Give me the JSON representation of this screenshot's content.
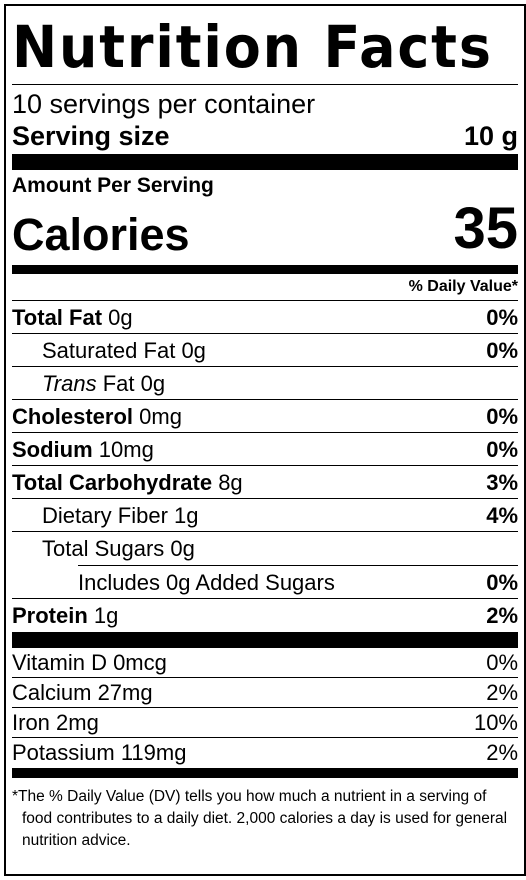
{
  "title": "Nutrition Facts",
  "servings_per_container": "10 servings per container",
  "serving_size": {
    "label": "Serving size",
    "value": "10 g"
  },
  "amount_per_serving": "Amount Per Serving",
  "calories": {
    "label": "Calories",
    "value": "35"
  },
  "daily_value_header": "% Daily Value*",
  "nutrients": {
    "total_fat": {
      "label": "Total Fat",
      "amount": "0g",
      "dv": "0%"
    },
    "saturated_fat": {
      "label": "Saturated Fat",
      "amount": "0g",
      "dv": "0%"
    },
    "trans_fat": {
      "label": "Trans",
      "suffix": "Fat",
      "amount": "0g"
    },
    "cholesterol": {
      "label": "Cholesterol",
      "amount": "0mg",
      "dv": "0%"
    },
    "sodium": {
      "label": "Sodium",
      "amount": "10mg",
      "dv": "0%"
    },
    "total_carbohydrate": {
      "label": "Total Carbohydrate",
      "amount": "8g",
      "dv": "3%"
    },
    "dietary_fiber": {
      "label": "Dietary Fiber",
      "amount": "1g",
      "dv": "4%"
    },
    "total_sugars": {
      "label": "Total Sugars",
      "amount": "0g"
    },
    "added_sugars": {
      "label": "Includes 0g Added Sugars",
      "dv": "0%"
    },
    "protein": {
      "label": "Protein",
      "amount": "1g",
      "dv": "2%"
    }
  },
  "vitamins": [
    {
      "label": "Vitamin D 0mcg",
      "dv": "0%"
    },
    {
      "label": "Calcium 27mg",
      "dv": "2%"
    },
    {
      "label": "Iron 2mg",
      "dv": "10%"
    },
    {
      "label": "Potassium 119mg",
      "dv": "2%"
    }
  ],
  "footnote": {
    "asterisk": "*",
    "text": "The % Daily Value (DV) tells you how much a nutrient in a serving of food contributes to a daily diet. 2,000 calories a day is used for general nutrition advice."
  }
}
